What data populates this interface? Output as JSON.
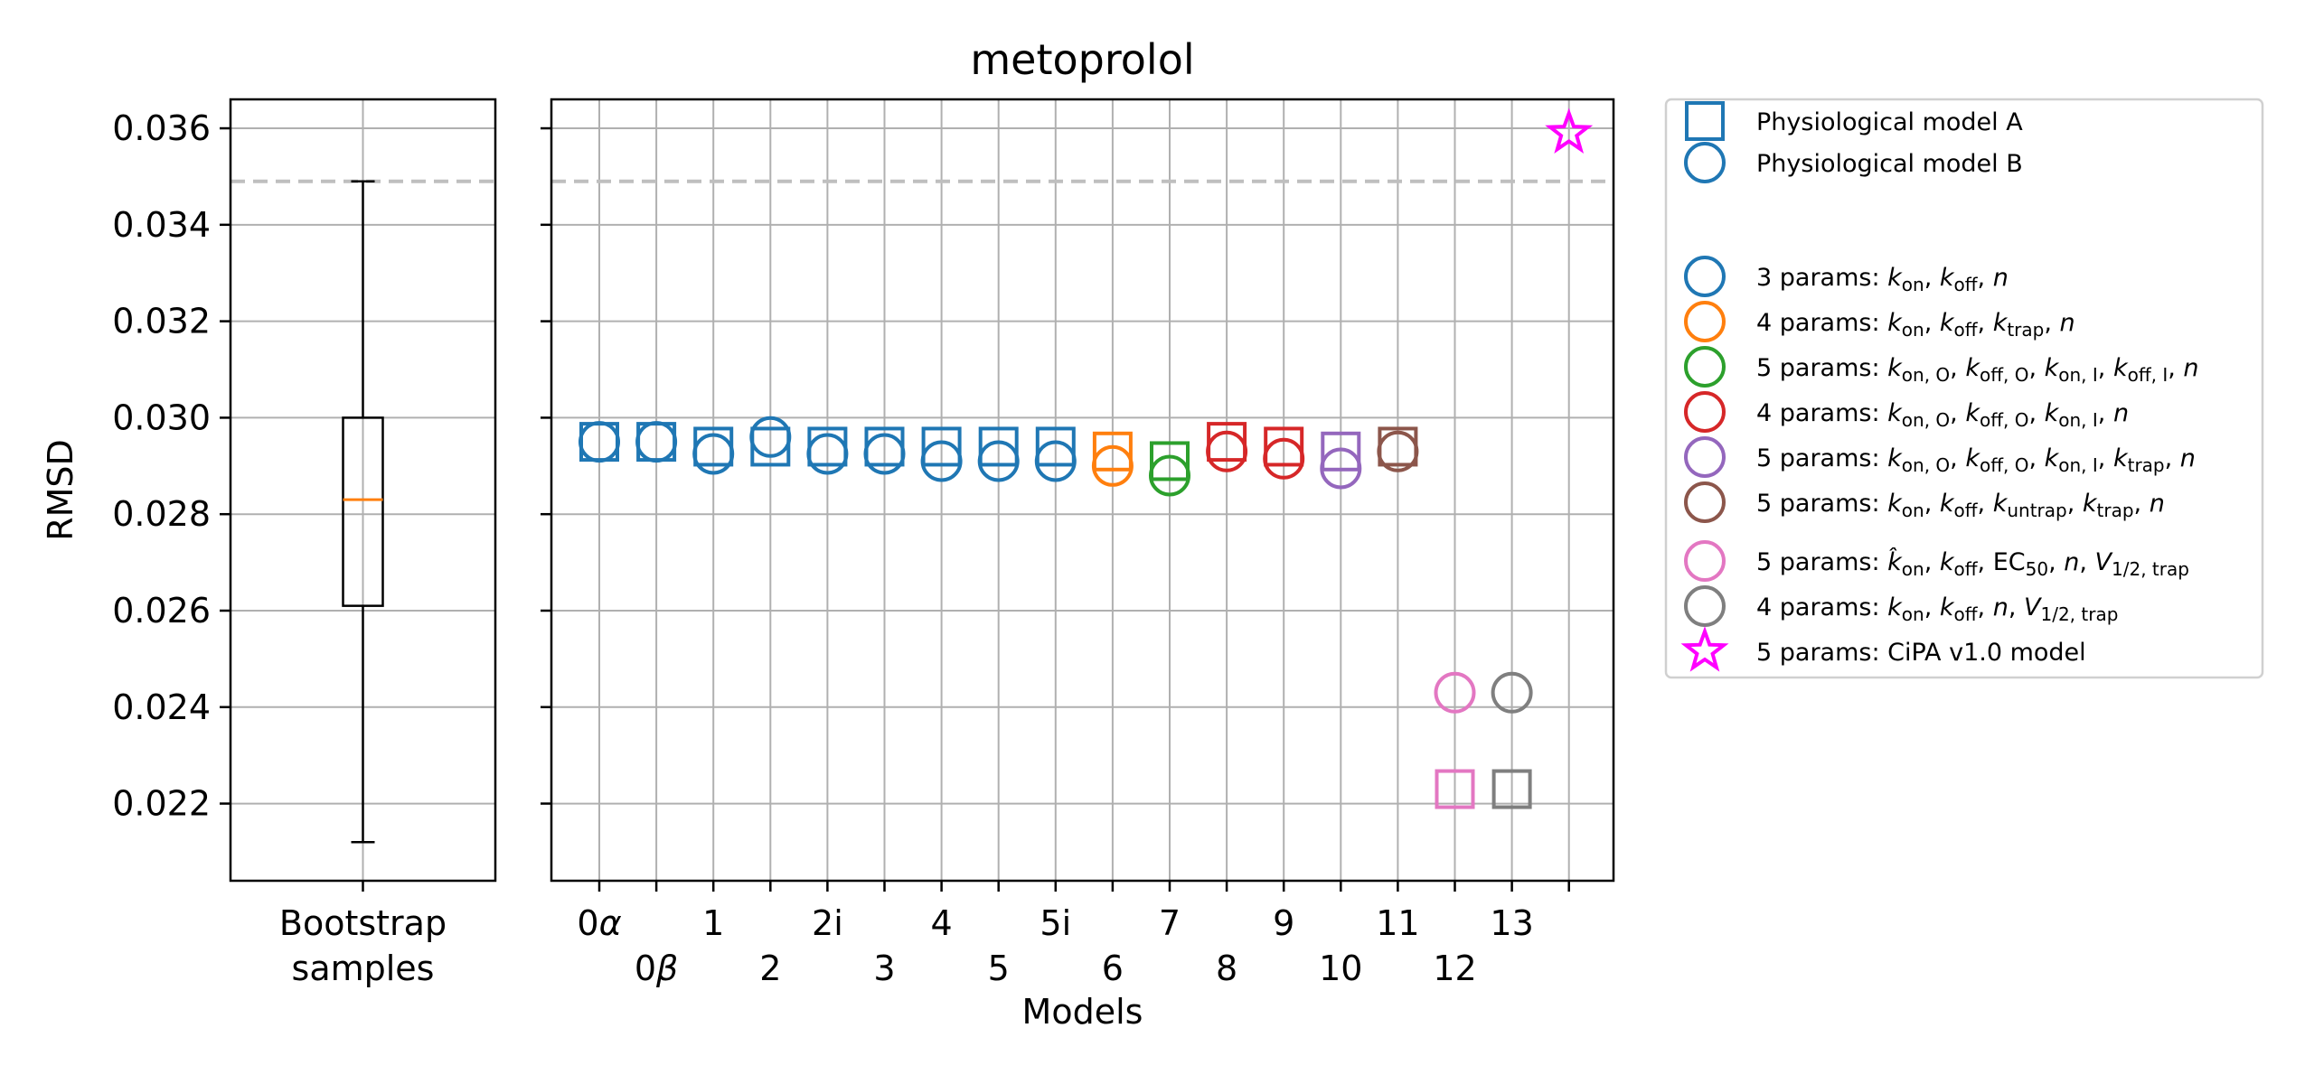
{
  "chart_data": [
    {
      "type": "box",
      "title": "",
      "xlabel": "",
      "ylabel": "RMSD",
      "categories": [
        "Bootstrap\nsamples"
      ],
      "category_lines": [
        "Bootstrap",
        "samples"
      ],
      "ylim": [
        0.0204,
        0.0366
      ],
      "yticks": [
        0.022,
        0.024,
        0.026,
        0.028,
        0.03,
        0.032,
        0.034,
        0.036
      ],
      "ytick_labels": [
        "0.022",
        "0.024",
        "0.026",
        "0.028",
        "0.030",
        "0.032",
        "0.034",
        "0.036"
      ],
      "grid": true,
      "box": {
        "whisker_low": 0.0212,
        "q1": 0.0261,
        "median": 0.0283,
        "q3": 0.03,
        "whisker_high": 0.0349
      },
      "reference_line": 0.0349,
      "colors": {
        "box": "#000000",
        "median": "#ff7f0e",
        "reference": "#bfbfbf"
      }
    },
    {
      "type": "scatter",
      "title": "metoprolol",
      "xlabel": "Models",
      "ylabel": "",
      "grid": true,
      "ylim": [
        0.0204,
        0.0366
      ],
      "yticks": [
        0.022,
        0.024,
        0.026,
        0.028,
        0.03,
        0.032,
        0.034,
        0.036
      ],
      "reference_line": 0.0349,
      "categories": [
        "0α",
        "0β",
        "1",
        "2",
        "2i",
        "3",
        "4",
        "5",
        "5i",
        "6",
        "7",
        "8",
        "9",
        "10",
        "11",
        "12",
        "13",
        ""
      ],
      "category_row": [
        0,
        1,
        0,
        1,
        0,
        1,
        0,
        1,
        0,
        1,
        0,
        1,
        0,
        1,
        0,
        1,
        0,
        0
      ],
      "points": [
        {
          "model": "0α",
          "A": 0.0295,
          "B": 0.0295,
          "group": 0
        },
        {
          "model": "0β",
          "A": 0.0295,
          "B": 0.0295,
          "group": 0
        },
        {
          "model": "1",
          "A": 0.0294,
          "B": 0.02925,
          "group": 0
        },
        {
          "model": "2",
          "A": 0.0294,
          "B": 0.0296,
          "group": 0
        },
        {
          "model": "2i",
          "A": 0.0294,
          "B": 0.02925,
          "group": 0
        },
        {
          "model": "3",
          "A": 0.0294,
          "B": 0.02925,
          "group": 0
        },
        {
          "model": "4",
          "A": 0.0294,
          "B": 0.0291,
          "group": 0
        },
        {
          "model": "5",
          "A": 0.0294,
          "B": 0.0291,
          "group": 0
        },
        {
          "model": "5i",
          "A": 0.0294,
          "B": 0.0291,
          "group": 0
        },
        {
          "model": "6",
          "A": 0.0293,
          "B": 0.029,
          "group": 1
        },
        {
          "model": "7",
          "A": 0.0291,
          "B": 0.0288,
          "group": 2
        },
        {
          "model": "8",
          "A": 0.0295,
          "B": 0.0293,
          "group": 3
        },
        {
          "model": "9",
          "A": 0.0294,
          "B": 0.02915,
          "group": 3
        },
        {
          "model": "10",
          "A": 0.0293,
          "B": 0.02895,
          "group": 4
        },
        {
          "model": "11",
          "A": 0.0294,
          "B": 0.0293,
          "group": 5
        },
        {
          "model": "12",
          "A": 0.0223,
          "B": 0.0243,
          "group": 6
        },
        {
          "model": "13",
          "A": 0.0223,
          "B": 0.0243,
          "group": 7
        }
      ],
      "cipa_point": {
        "index": 17,
        "y": 0.0359
      },
      "group_colors": [
        "#1f77b4",
        "#ff7f0e",
        "#2ca02c",
        "#d62728",
        "#9467bd",
        "#8c564b",
        "#e377c2",
        "#7f7f7f"
      ],
      "cipa_color": "#ff00ff",
      "legend": {
        "placement": "outside-right",
        "entries": [
          {
            "marker": "square",
            "color": "#1f77b4",
            "parts": [
              [
                "Physiological model A",
                ""
              ]
            ]
          },
          {
            "marker": "circle",
            "color": "#1f77b4",
            "parts": [
              [
                "Physiological model B",
                ""
              ]
            ]
          },
          {
            "marker": "circle",
            "color": "#1f77b4",
            "parts": [
              [
                "3 params: ",
                ""
              ],
              [
                "k",
                "it"
              ],
              [
                "on",
                "sub"
              ],
              [
                ", ",
                ""
              ],
              [
                "k",
                "it"
              ],
              [
                "off",
                "sub"
              ],
              [
                ", ",
                ""
              ],
              [
                "n",
                "it"
              ]
            ]
          },
          {
            "marker": "circle",
            "color": "#ff7f0e",
            "parts": [
              [
                "4 params: ",
                ""
              ],
              [
                "k",
                "it"
              ],
              [
                "on",
                "sub"
              ],
              [
                ", ",
                ""
              ],
              [
                "k",
                "it"
              ],
              [
                "off",
                "sub"
              ],
              [
                ", ",
                ""
              ],
              [
                "k",
                "it"
              ],
              [
                "trap",
                "sub"
              ],
              [
                ", ",
                ""
              ],
              [
                "n",
                "it"
              ]
            ]
          },
          {
            "marker": "circle",
            "color": "#2ca02c",
            "parts": [
              [
                "5 params: ",
                ""
              ],
              [
                "k",
                "it"
              ],
              [
                "on, O",
                "sub"
              ],
              [
                ", ",
                ""
              ],
              [
                "k",
                "it"
              ],
              [
                "off, O",
                "sub"
              ],
              [
                ", ",
                ""
              ],
              [
                "k",
                "it"
              ],
              [
                "on, I",
                "sub"
              ],
              [
                ", ",
                ""
              ],
              [
                "k",
                "it"
              ],
              [
                "off, I",
                "sub"
              ],
              [
                ", ",
                ""
              ],
              [
                "n",
                "it"
              ]
            ]
          },
          {
            "marker": "circle",
            "color": "#d62728",
            "parts": [
              [
                "4 params: ",
                ""
              ],
              [
                "k",
                "it"
              ],
              [
                "on, O",
                "sub"
              ],
              [
                ", ",
                ""
              ],
              [
                "k",
                "it"
              ],
              [
                "off, O",
                "sub"
              ],
              [
                ", ",
                ""
              ],
              [
                "k",
                "it"
              ],
              [
                "on, I",
                "sub"
              ],
              [
                ", ",
                ""
              ],
              [
                "n",
                "it"
              ]
            ]
          },
          {
            "marker": "circle",
            "color": "#9467bd",
            "parts": [
              [
                "5 params: ",
                ""
              ],
              [
                "k",
                "it"
              ],
              [
                "on, O",
                "sub"
              ],
              [
                ", ",
                ""
              ],
              [
                "k",
                "it"
              ],
              [
                "off, O",
                "sub"
              ],
              [
                ", ",
                ""
              ],
              [
                "k",
                "it"
              ],
              [
                "on, I",
                "sub"
              ],
              [
                ", ",
                ""
              ],
              [
                "k",
                "it"
              ],
              [
                "trap",
                "sub"
              ],
              [
                ", ",
                ""
              ],
              [
                "n",
                "it"
              ]
            ]
          },
          {
            "marker": "circle",
            "color": "#8c564b",
            "parts": [
              [
                "5 params: ",
                ""
              ],
              [
                "k",
                "it"
              ],
              [
                "on",
                "sub"
              ],
              [
                ", ",
                ""
              ],
              [
                "k",
                "it"
              ],
              [
                "off",
                "sub"
              ],
              [
                ", ",
                ""
              ],
              [
                "k",
                "it"
              ],
              [
                "untrap",
                "sub"
              ],
              [
                ", ",
                ""
              ],
              [
                "k",
                "it"
              ],
              [
                "trap",
                "sub"
              ],
              [
                ", ",
                ""
              ],
              [
                "n",
                "it"
              ]
            ]
          },
          {
            "marker": "circle",
            "color": "#e377c2",
            "parts": [
              [
                "5 params: ",
                ""
              ],
              [
                "k̂",
                "it"
              ],
              [
                "on",
                "sub"
              ],
              [
                ", ",
                ""
              ],
              [
                "k",
                "it"
              ],
              [
                "off",
                "sub"
              ],
              [
                ", EC",
                ""
              ],
              [
                "50",
                "sub"
              ],
              [
                ", ",
                ""
              ],
              [
                "n",
                "it"
              ],
              [
                ", ",
                ""
              ],
              [
                "V",
                "it"
              ],
              [
                "1/2, trap",
                "sub"
              ]
            ]
          },
          {
            "marker": "circle",
            "color": "#7f7f7f",
            "parts": [
              [
                "4 params: ",
                ""
              ],
              [
                "k",
                "it"
              ],
              [
                "on",
                "sub"
              ],
              [
                ", ",
                ""
              ],
              [
                "k",
                "it"
              ],
              [
                "off",
                "sub"
              ],
              [
                ", ",
                ""
              ],
              [
                "n",
                "it"
              ],
              [
                ", ",
                ""
              ],
              [
                "V",
                "it"
              ],
              [
                "1/2, trap",
                "sub"
              ]
            ]
          },
          {
            "marker": "star",
            "color": "#ff00ff",
            "parts": [
              [
                "5 params: CiPA v1.0 model",
                ""
              ]
            ]
          }
        ]
      }
    }
  ]
}
